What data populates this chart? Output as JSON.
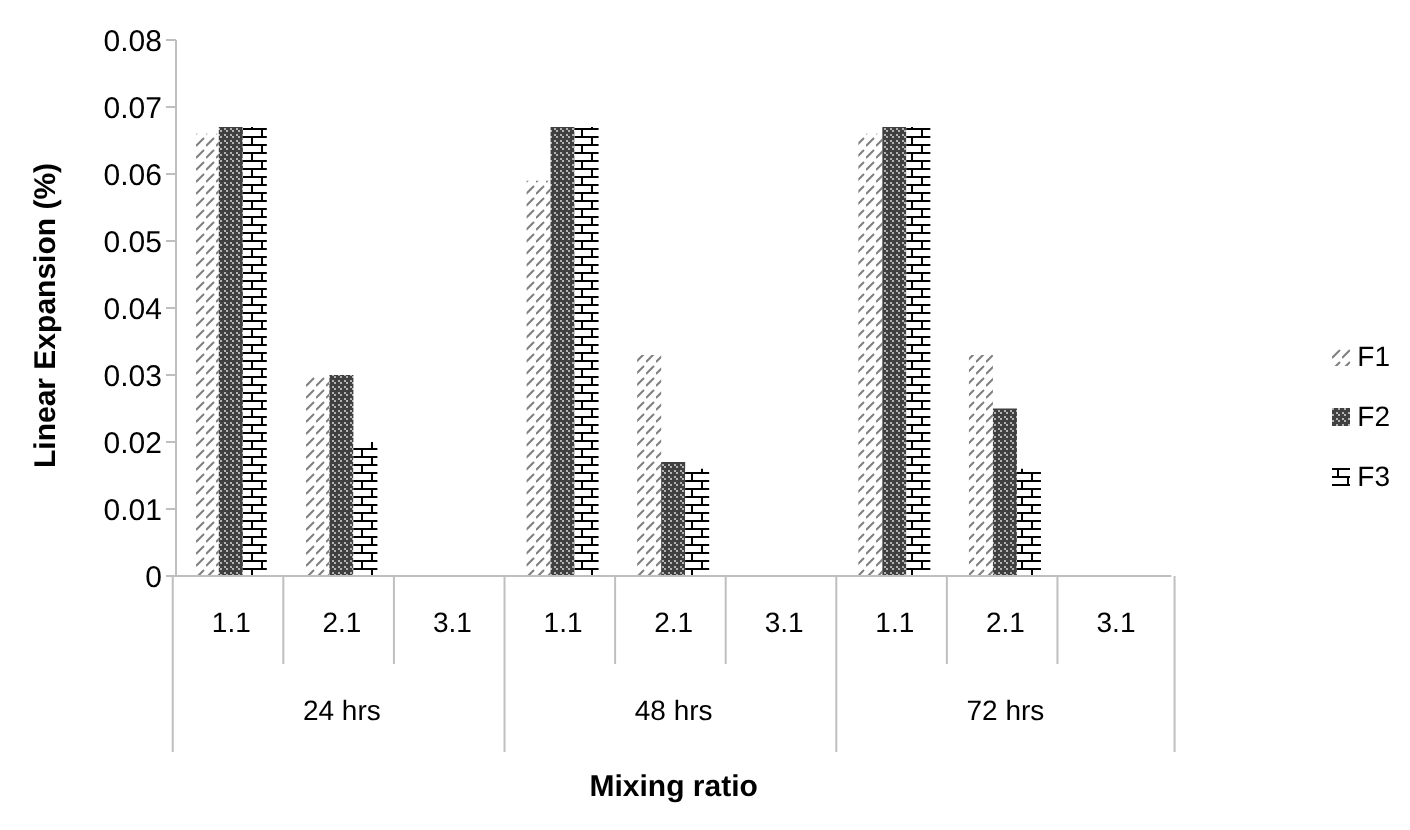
{
  "chart_data": {
    "type": "bar",
    "xlabel": "Mixing ratio",
    "ylabel": "Linear Expansion (%)",
    "categories": [
      "1.1",
      "2.1",
      "3.1",
      "1.1",
      "2.1",
      "3.1",
      "1.1",
      "2.1",
      "3.1"
    ],
    "annotations": [
      "24 hrs",
      "48 hrs",
      "72 hrs"
    ],
    "series": [
      {
        "name": "F1",
        "color": "#7f7f7f",
        "values": [
          0.066,
          0.03,
          null,
          0.059,
          0.033,
          null,
          0.066,
          0.033,
          null
        ]
      },
      {
        "name": "F2",
        "color": "#404040",
        "values": [
          0.067,
          0.03,
          null,
          0.067,
          0.017,
          null,
          0.067,
          0.025,
          null
        ]
      },
      {
        "name": "F3",
        "color": "#000000",
        "values": [
          0.067,
          0.02,
          null,
          0.067,
          0.016,
          null,
          0.067,
          0.016,
          null
        ]
      }
    ],
    "ylim": [
      0,
      0.08
    ],
    "yticks": [
      0,
      0.01,
      0.02,
      0.03,
      0.04,
      0.05,
      0.06,
      0.07,
      0.08
    ],
    "grid": false,
    "legend": "right"
  }
}
